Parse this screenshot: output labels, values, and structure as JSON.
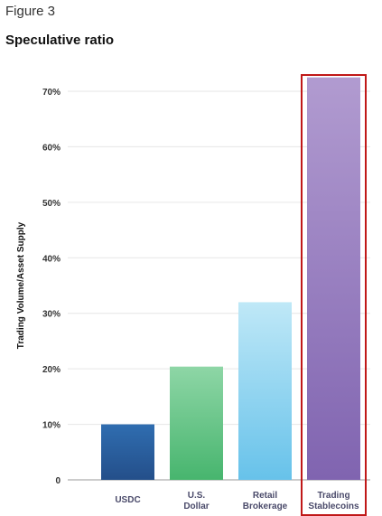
{
  "figure_label": "Figure 3",
  "chart_data": {
    "type": "bar",
    "title": "Speculative ratio",
    "xlabel": "",
    "ylabel": "Trading Volume/Asset Supply",
    "categories": [
      [
        "USDC"
      ],
      [
        "U.S.",
        "Dollar"
      ],
      [
        "Retail",
        "Brokerage"
      ],
      [
        "Trading",
        "Stablecoins"
      ]
    ],
    "values": [
      10,
      20.4,
      32,
      72.5
    ],
    "ylim": [
      0,
      70
    ],
    "yticks": [
      0,
      10,
      20,
      30,
      40,
      50,
      60,
      70
    ],
    "ytick_labels": [
      "0",
      "10%",
      "20%",
      "30%",
      "40%",
      "50%",
      "60%",
      "70%"
    ],
    "grid": true,
    "highlighted_category": "Trading Stablecoins",
    "colors": {
      "bars": [
        [
          "#2f6db0",
          "#244f8a"
        ],
        [
          "#8ed6a6",
          "#47b56e"
        ],
        [
          "#bfe8f7",
          "#67c2ea"
        ],
        [
          "#b19bd0",
          "#8064b0"
        ]
      ],
      "highlight_border": "#c01818",
      "grid": "#e6e6e6"
    }
  }
}
